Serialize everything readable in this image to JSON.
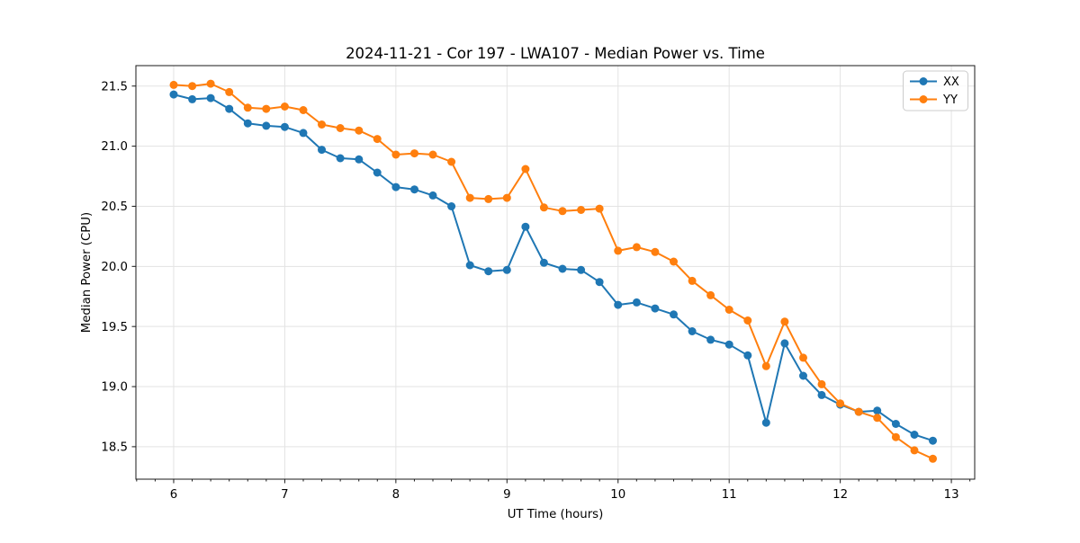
{
  "chart_data": {
    "type": "line",
    "title": "2024-11-21 - Cor 197 - LWA107 - Median Power vs. Time",
    "xlabel": "UT Time (hours)",
    "ylabel": "Median Power (CPU)",
    "xlim": [
      5.66,
      13.21
    ],
    "ylim": [
      18.23,
      21.67
    ],
    "x_ticks": [
      6,
      7,
      8,
      9,
      10,
      11,
      12,
      13
    ],
    "x_minor_tick_step_hours": 0.1667,
    "y_ticks": [
      18.5,
      19.0,
      19.5,
      20.0,
      20.5,
      21.0,
      21.5
    ],
    "grid": true,
    "legend_position": "upper-right",
    "x": [
      6.0,
      6.167,
      6.333,
      6.5,
      6.667,
      6.833,
      7.0,
      7.167,
      7.333,
      7.5,
      7.667,
      7.833,
      8.0,
      8.167,
      8.333,
      8.5,
      8.667,
      8.833,
      9.0,
      9.167,
      9.333,
      9.5,
      9.667,
      9.833,
      10.0,
      10.167,
      10.333,
      10.5,
      10.667,
      10.833,
      11.0,
      11.167,
      11.333,
      11.5,
      11.667,
      11.833,
      12.0,
      12.167,
      12.333,
      12.5,
      12.667,
      12.833
    ],
    "series": [
      {
        "name": "XX",
        "color": "#1f77b4",
        "values": [
          21.43,
          21.39,
          21.4,
          21.31,
          21.19,
          21.17,
          21.16,
          21.11,
          20.97,
          20.9,
          20.89,
          20.78,
          20.66,
          20.64,
          20.59,
          20.5,
          20.01,
          19.96,
          19.97,
          20.33,
          20.03,
          19.98,
          19.97,
          19.87,
          19.68,
          19.7,
          19.65,
          19.6,
          19.46,
          19.39,
          19.35,
          19.26,
          18.7,
          19.36,
          19.09,
          18.93,
          18.85,
          18.79,
          18.8,
          18.69,
          18.6,
          18.55
        ]
      },
      {
        "name": "YY",
        "color": "#ff7f0e",
        "values": [
          21.51,
          21.5,
          21.52,
          21.45,
          21.32,
          21.31,
          21.33,
          21.3,
          21.18,
          21.15,
          21.13,
          21.06,
          20.93,
          20.94,
          20.93,
          20.87,
          20.57,
          20.56,
          20.57,
          20.81,
          20.49,
          20.46,
          20.47,
          20.48,
          20.13,
          20.16,
          20.12,
          20.04,
          19.88,
          19.76,
          19.64,
          19.55,
          19.17,
          19.54,
          19.24,
          19.02,
          18.86,
          18.79,
          18.74,
          18.58,
          18.47,
          18.4
        ]
      }
    ],
    "style": {
      "grid_color": "#e3e3e3",
      "spine_color": "#1a1a1a",
      "tick_color": "#1a1a1a",
      "legend_border_color": "#cccccc",
      "background": "#ffffff"
    }
  }
}
